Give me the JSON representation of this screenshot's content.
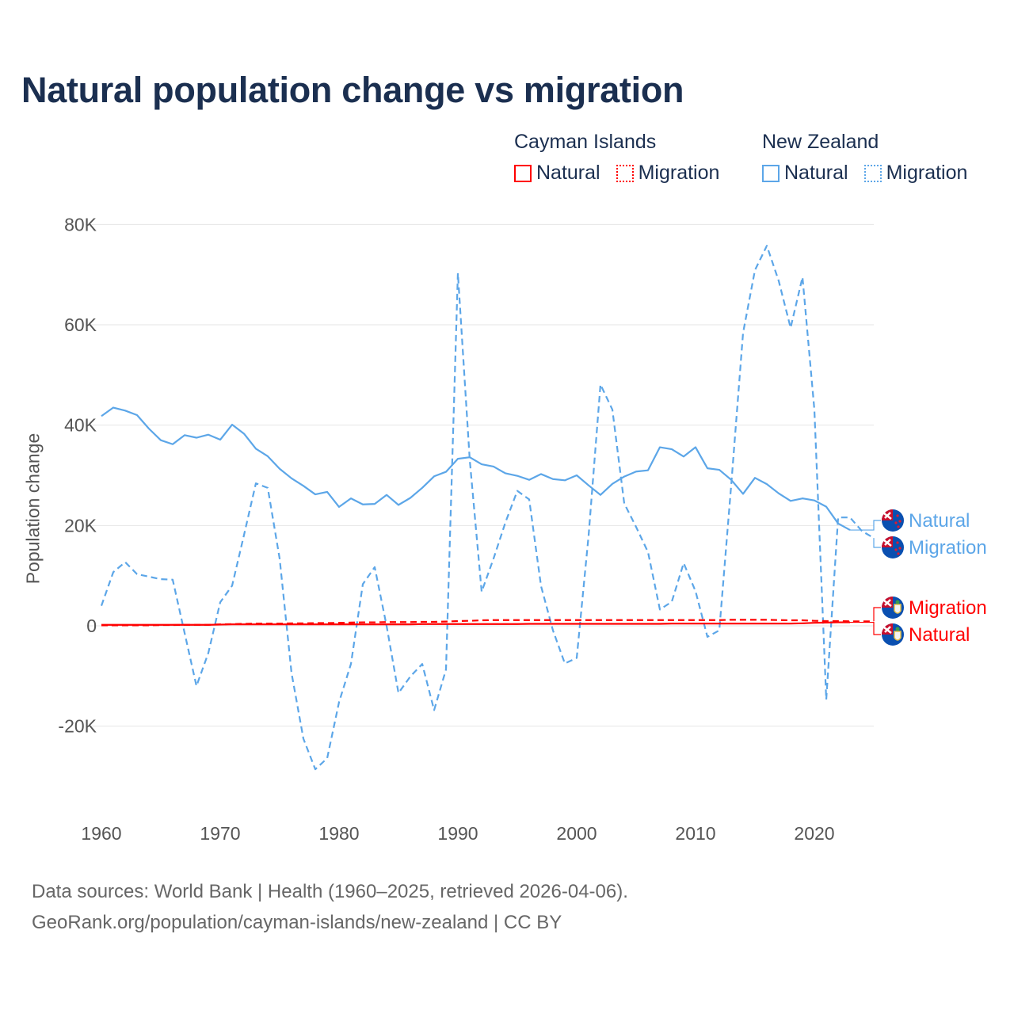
{
  "title": "Natural population change vs migration",
  "legend": [
    {
      "group": "Cayman Islands",
      "color": "#ff0000",
      "items": [
        {
          "label": "Natural",
          "style": "solid"
        },
        {
          "label": "Migration",
          "style": "dotted"
        }
      ]
    },
    {
      "group": "New Zealand",
      "color": "#5ca6e8",
      "items": [
        {
          "label": "Natural",
          "style": "solid"
        },
        {
          "label": "Migration",
          "style": "dotted"
        }
      ]
    }
  ],
  "footer": {
    "line1": "Data sources: World Bank | Health (1960–2025, retrieved 2026-04-06).",
    "line2": "GeoRank.org/population/cayman-islands/new-zealand | CC BY"
  },
  "chart_data": {
    "type": "line",
    "title": "Natural population change vs migration",
    "xlabel": "",
    "ylabel": "Population change",
    "xlim": [
      1960,
      2025
    ],
    "ylim": [
      -30000,
      80000
    ],
    "x_ticks": [
      1960,
      1970,
      1980,
      1990,
      2000,
      2010,
      2020
    ],
    "x_tick_labels": [
      "1960",
      "1970",
      "1980",
      "1990",
      "2000",
      "2010",
      "2020"
    ],
    "y_ticks": [
      -20000,
      0,
      20000,
      40000,
      60000,
      80000
    ],
    "y_tick_labels": [
      "-20K",
      "0",
      "20K",
      "40K",
      "60K",
      "80K"
    ],
    "grid": true,
    "legend_position": "top-right",
    "series": [
      {
        "name": "New Zealand Natural",
        "country": "New Zealand",
        "label": "Natural",
        "color": "#5ca6e8",
        "dash": "solid",
        "start_year": 1960,
        "values": [
          41800,
          43500,
          42900,
          42000,
          39300,
          37000,
          36200,
          38000,
          37500,
          38100,
          37100,
          40100,
          38300,
          35300,
          33800,
          31300,
          29400,
          27900,
          26200,
          26700,
          23700,
          25400,
          24200,
          24300,
          26100,
          24100,
          25500,
          27500,
          29800,
          30700,
          33300,
          33600,
          32200,
          31750,
          30400,
          29900,
          29100,
          30250,
          29250,
          29000,
          30000,
          28000,
          26100,
          28300,
          29750,
          30750,
          31000,
          35600,
          35200,
          33750,
          35600,
          31400,
          31100,
          29100,
          26300,
          29500,
          28250,
          26400,
          24900,
          25400,
          25000,
          23750,
          20400,
          19100
        ]
      },
      {
        "name": "New Zealand Migration",
        "country": "New Zealand",
        "label": "Migration",
        "color": "#5ca6e8",
        "dash": "dashed",
        "start_year": 1960,
        "values": [
          4000,
          10700,
          12700,
          10300,
          9800,
          9300,
          9200,
          -1400,
          -12000,
          -5400,
          4700,
          8000,
          18100,
          28400,
          27500,
          13400,
          -9400,
          -22500,
          -28600,
          -26400,
          -15200,
          -7600,
          8300,
          11700,
          0,
          -13400,
          -10100,
          -7600,
          -16800,
          -8700,
          70300,
          33000,
          6800,
          13400,
          20600,
          26900,
          25200,
          7900,
          -900,
          -7500,
          -6400,
          18000,
          48100,
          43100,
          24400,
          19700,
          14700,
          3250,
          4800,
          12500,
          6900,
          -2200,
          -900,
          28000,
          58400,
          70900,
          75750,
          68750,
          59400,
          69500,
          43100,
          -14700,
          21600,
          21600,
          18900,
          17500
        ]
      },
      {
        "name": "Cayman Islands Migration",
        "country": "Cayman Islands",
        "label": "Migration",
        "color": "#ff0000",
        "dash": "dashed",
        "start_year": 1960,
        "values": [
          100,
          100,
          100,
          100,
          100,
          150,
          150,
          200,
          200,
          200,
          300,
          350,
          400,
          450,
          450,
          450,
          500,
          500,
          550,
          550,
          600,
          650,
          700,
          700,
          750,
          750,
          750,
          800,
          800,
          850,
          950,
          1000,
          1100,
          1150,
          1150,
          1150,
          1150,
          1150,
          1150,
          1150,
          1150,
          1150,
          1150,
          1150,
          1150,
          1150,
          1150,
          1150,
          1150,
          1150,
          1150,
          1150,
          1150,
          1200,
          1200,
          1200,
          1200,
          1150,
          1100,
          1100,
          1000,
          950,
          950,
          900,
          900,
          900
        ]
      },
      {
        "name": "Cayman Islands Natural",
        "country": "Cayman Islands",
        "label": "Natural",
        "color": "#ff0000",
        "dash": "solid",
        "start_year": 1960,
        "values": [
          200,
          200,
          200,
          200,
          200,
          200,
          200,
          200,
          200,
          200,
          250,
          300,
          300,
          300,
          300,
          300,
          300,
          300,
          300,
          300,
          300,
          300,
          300,
          300,
          300,
          300,
          300,
          350,
          350,
          350,
          350,
          350,
          350,
          350,
          350,
          350,
          400,
          400,
          400,
          400,
          400,
          400,
          400,
          400,
          400,
          400,
          400,
          400,
          450,
          450,
          450,
          450,
          450,
          450,
          450,
          450,
          450,
          450,
          450,
          500,
          600,
          650,
          700,
          700
        ]
      }
    ],
    "end_labels": [
      {
        "text": "Natural",
        "country": "New Zealand",
        "color": "#5ca6e8",
        "flag": "new-zealand-flag"
      },
      {
        "text": "Migration",
        "country": "New Zealand",
        "color": "#5ca6e8",
        "flag": "new-zealand-flag"
      },
      {
        "text": "Migration",
        "country": "Cayman Islands",
        "color": "#ff0000",
        "flag": "cayman-islands-flag"
      },
      {
        "text": "Natural",
        "country": "Cayman Islands",
        "color": "#ff0000",
        "flag": "cayman-islands-flag"
      }
    ]
  }
}
